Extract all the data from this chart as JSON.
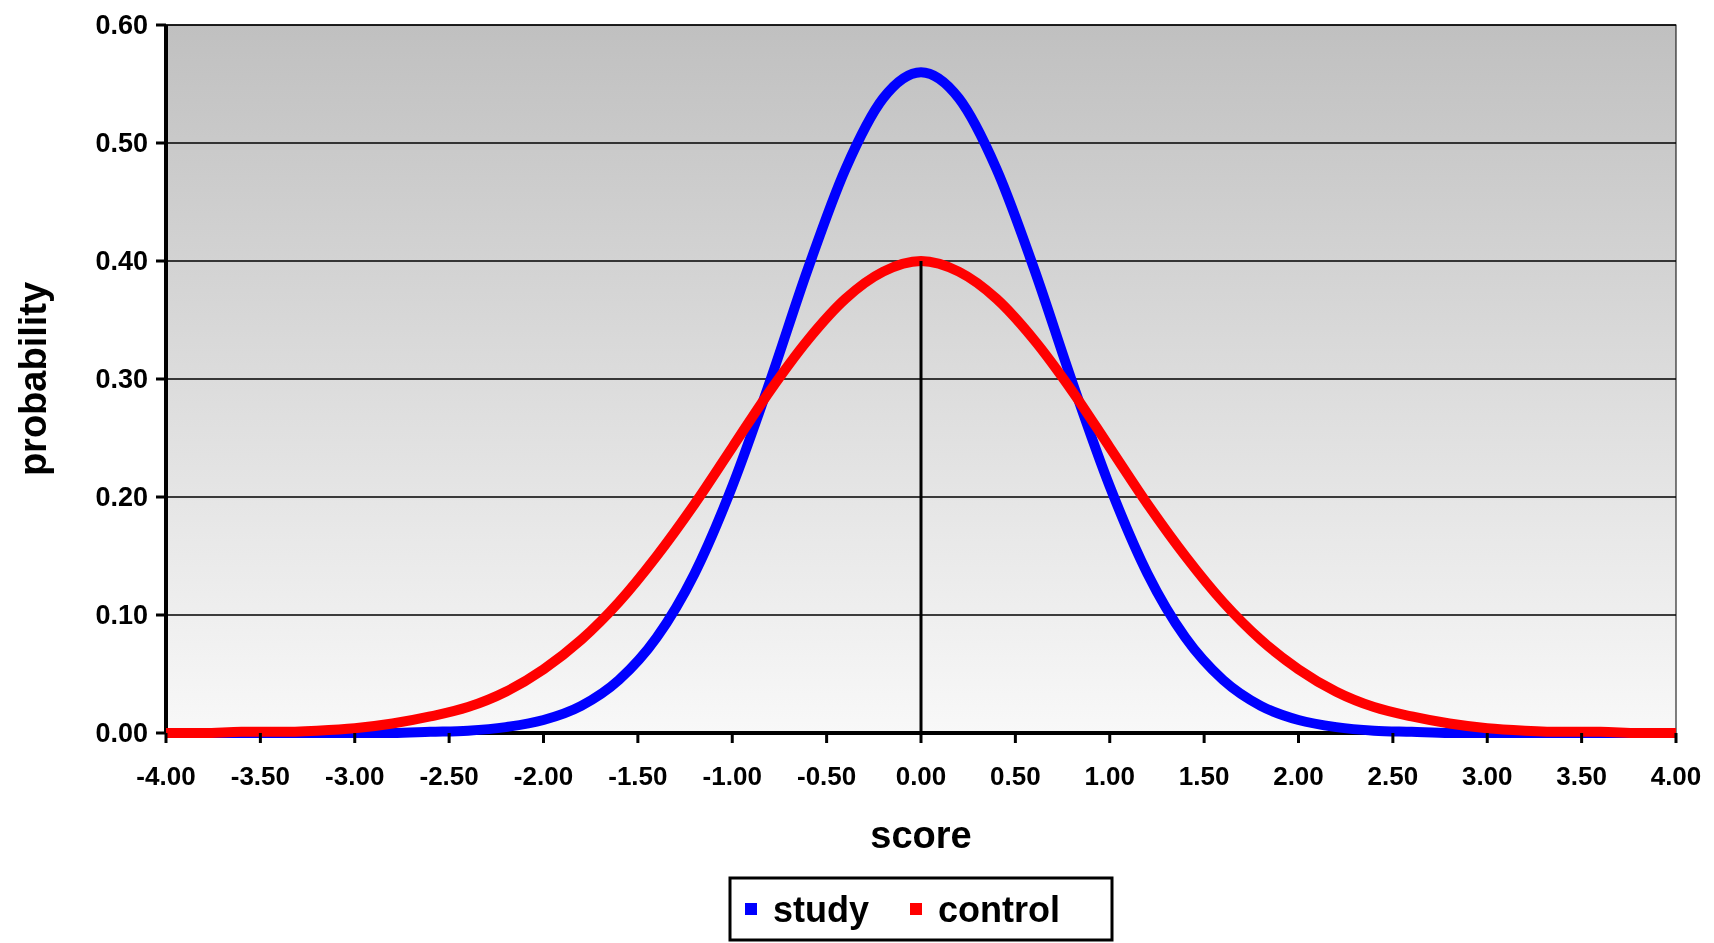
{
  "chart_data": {
    "type": "line",
    "xlabel": "score",
    "ylabel": "probability",
    "xlim": [
      -4,
      4
    ],
    "ylim": [
      0,
      0.6
    ],
    "xticks": [
      {
        "value": -4,
        "label": "-4.00"
      },
      {
        "value": -3.5,
        "label": "-3.50"
      },
      {
        "value": -3,
        "label": "-3.00"
      },
      {
        "value": -2.5,
        "label": "-2.50"
      },
      {
        "value": -2,
        "label": "-2.00"
      },
      {
        "value": -1.5,
        "label": "-1.50"
      },
      {
        "value": -1,
        "label": "-1.00"
      },
      {
        "value": -0.5,
        "label": "-0.50"
      },
      {
        "value": 0,
        "label": "0.00"
      },
      {
        "value": 0.5,
        "label": "0.50"
      },
      {
        "value": 1,
        "label": "1.00"
      },
      {
        "value": 1.5,
        "label": "1.50"
      },
      {
        "value": 2,
        "label": "2.00"
      },
      {
        "value": 2.5,
        "label": "2.50"
      },
      {
        "value": 3,
        "label": "3.00"
      },
      {
        "value": 3.5,
        "label": "3.50"
      },
      {
        "value": 4,
        "label": "4.00"
      }
    ],
    "yticks": [
      {
        "value": 0,
        "label": "0.00"
      },
      {
        "value": 0.1,
        "label": "0.10"
      },
      {
        "value": 0.2,
        "label": "0.20"
      },
      {
        "value": 0.3,
        "label": "0.30"
      },
      {
        "value": 0.4,
        "label": "0.40"
      },
      {
        "value": 0.5,
        "label": "0.50"
      },
      {
        "value": 0.6,
        "label": "0.60"
      }
    ],
    "grid": "y",
    "legend": "bottom",
    "line_style": "solid",
    "x": [
      -4,
      -3.8,
      -3.6,
      -3.4,
      -3.2,
      -3,
      -2.8,
      -2.6,
      -2.4,
      -2.2,
      -2,
      -1.8,
      -1.6,
      -1.4,
      -1.2,
      -1,
      -0.8,
      -0.6,
      -0.4,
      -0.2,
      0,
      0.2,
      0.4,
      0.6,
      0.8,
      1,
      1.2,
      1.4,
      1.6,
      1.8,
      2,
      2.2,
      2.4,
      2.6,
      2.8,
      3,
      3.2,
      3.4,
      3.6,
      3.8,
      4
    ],
    "series": [
      {
        "name": "study",
        "color": "#0000ff",
        "values": [
          0,
          0,
          0,
          0,
          0,
          0,
          0,
          0.001,
          0.002,
          0.005,
          0.011,
          0.023,
          0.045,
          0.081,
          0.135,
          0.209,
          0.298,
          0.393,
          0.478,
          0.538,
          0.56,
          0.538,
          0.478,
          0.393,
          0.298,
          0.209,
          0.135,
          0.081,
          0.045,
          0.023,
          0.011,
          0.005,
          0.002,
          0.001,
          0,
          0,
          0,
          0,
          0,
          0,
          0
        ]
      },
      {
        "name": "control",
        "color": "#ff0000",
        "values": [
          0,
          0,
          0.001,
          0.001,
          0.002,
          0.004,
          0.008,
          0.014,
          0.022,
          0.035,
          0.054,
          0.079,
          0.111,
          0.15,
          0.194,
          0.242,
          0.29,
          0.333,
          0.368,
          0.391,
          0.4,
          0.391,
          0.368,
          0.333,
          0.29,
          0.242,
          0.194,
          0.15,
          0.111,
          0.079,
          0.054,
          0.035,
          0.022,
          0.014,
          0.008,
          0.004,
          0.002,
          0.001,
          0.001,
          0,
          0
        ]
      },
      {
        "type": "line",
        "color": "#000000",
        "x": [
          0,
          0
        ],
        "values": [
          0,
          0.4
        ]
      }
    ]
  }
}
